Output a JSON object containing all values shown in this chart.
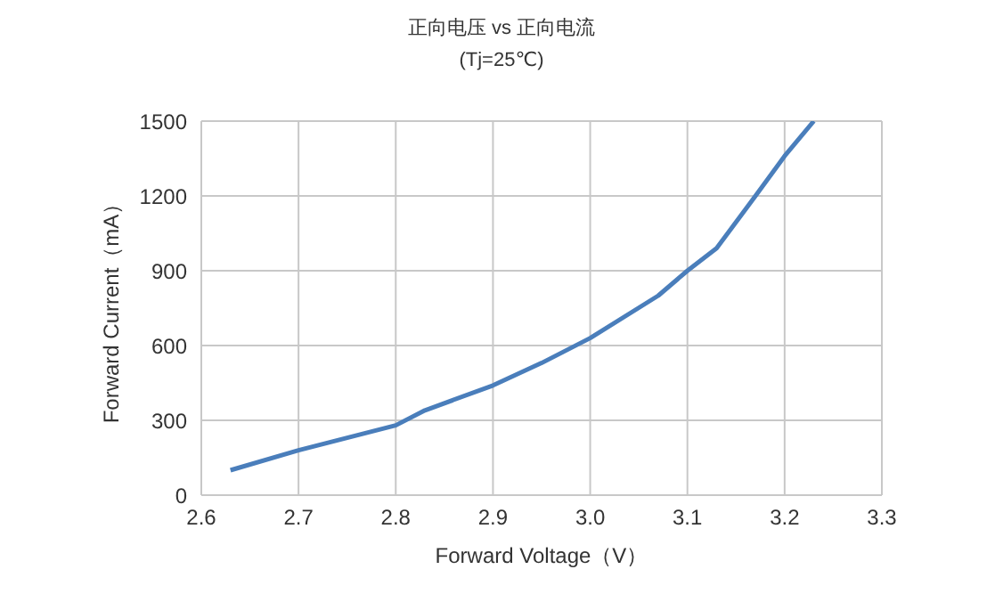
{
  "chart_data": {
    "type": "line",
    "title": "正向电压 vs 正向电流",
    "subtitle": "(Tj=25℃)",
    "xlabel": "Forward Voltage（V）",
    "ylabel": "Forward Current（mA）",
    "x": [
      2.63,
      2.7,
      2.8,
      2.83,
      2.9,
      2.95,
      3.0,
      3.07,
      3.1,
      3.13,
      3.17,
      3.2,
      3.23
    ],
    "series": [
      {
        "color": "#4a7ebb",
        "values": [
          100,
          180,
          280,
          340,
          440,
          530,
          630,
          800,
          900,
          990,
          1200,
          1360,
          1500
        ]
      }
    ],
    "xlim": [
      2.6,
      3.3
    ],
    "xticks": [
      {
        "value": 2.6,
        "label": "2.6"
      },
      {
        "value": 2.7,
        "label": "2.7"
      },
      {
        "value": 2.8,
        "label": "2.8"
      },
      {
        "value": 2.9,
        "label": "2.9"
      },
      {
        "value": 3.0,
        "label": "3.0"
      },
      {
        "value": 3.1,
        "label": "3.1"
      },
      {
        "value": 3.2,
        "label": "3.2"
      },
      {
        "value": 3.3,
        "label": "3.3"
      }
    ],
    "ylim": [
      0,
      1500
    ],
    "yticks": [
      0,
      300,
      600,
      900,
      1200,
      1500
    ],
    "grid": true,
    "marker": "none",
    "line_style": "solid",
    "legend": false
  }
}
